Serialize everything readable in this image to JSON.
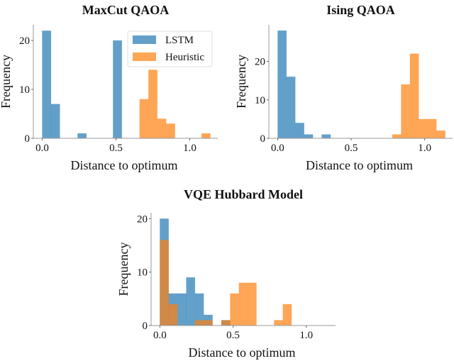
{
  "colors": {
    "lstm": "#1f77b4",
    "heuristic": "#ff7f0e",
    "opacity": 0.7
  },
  "legend": {
    "placement": "top-right of first panel",
    "entries": [
      "LSTM",
      "Heuristic"
    ]
  },
  "chart_data": [
    {
      "type": "bar",
      "title": "MaxCut QAOA",
      "xlabel": "Distance to optimum",
      "ylabel": "Frequency",
      "xlim": [
        -0.06,
        1.19
      ],
      "ylim": [
        0,
        23.2
      ],
      "xticks": [
        "0.0",
        "0.5",
        "1.0"
      ],
      "yticks": [
        "0",
        "10",
        "20"
      ],
      "bin_width": 0.06,
      "series": [
        {
          "name": "LSTM",
          "bins": [
            [
              0.0,
              22
            ],
            [
              0.06,
              7
            ],
            [
              0.24,
              1
            ],
            [
              0.48,
              20
            ]
          ]
        },
        {
          "name": "Heuristic",
          "bins": [
            [
              0.66,
              8
            ],
            [
              0.72,
              14
            ],
            [
              0.78,
              4
            ],
            [
              0.84,
              3
            ],
            [
              1.08,
              1
            ]
          ]
        }
      ]
    },
    {
      "type": "bar",
      "title": "Ising QAOA",
      "xlabel": "Distance to optimum",
      "ylabel": "Frequency",
      "xlim": [
        -0.06,
        1.19
      ],
      "ylim": [
        0,
        29.5
      ],
      "xticks": [
        "0.0",
        "0.5",
        "1.0"
      ],
      "yticks": [
        "0",
        "10",
        "20"
      ],
      "bin_width": 0.06,
      "series": [
        {
          "name": "LSTM",
          "bins": [
            [
              0.0,
              28
            ],
            [
              0.06,
              16
            ],
            [
              0.12,
              4
            ],
            [
              0.18,
              1
            ],
            [
              0.3,
              1
            ]
          ]
        },
        {
          "name": "Heuristic",
          "bins": [
            [
              0.78,
              1
            ],
            [
              0.84,
              14
            ],
            [
              0.9,
              22
            ],
            [
              0.96,
              5
            ],
            [
              1.02,
              5
            ],
            [
              1.08,
              2
            ]
          ]
        }
      ]
    },
    {
      "type": "bar",
      "title": "VQE Hubbard Model",
      "xlabel": "Distance to optimum",
      "ylabel": "Frequency",
      "xlim": [
        -0.06,
        1.2
      ],
      "ylim": [
        0,
        21.1
      ],
      "xticks": [
        "0.0",
        "0.5",
        "1.0"
      ],
      "yticks": [
        "0",
        "10",
        "20"
      ],
      "bin_width": 0.06,
      "series": [
        {
          "name": "LSTM",
          "bins": [
            [
              0.0,
              20
            ],
            [
              0.06,
              6
            ],
            [
              0.12,
              6
            ],
            [
              0.18,
              9
            ],
            [
              0.24,
              6
            ],
            [
              0.3,
              2
            ],
            [
              0.42,
              1
            ]
          ]
        },
        {
          "name": "Heuristic",
          "bins": [
            [
              0.0,
              16
            ],
            [
              0.06,
              4
            ],
            [
              0.24,
              1
            ],
            [
              0.3,
              1
            ],
            [
              0.42,
              1
            ],
            [
              0.48,
              6
            ],
            [
              0.54,
              8
            ],
            [
              0.6,
              8
            ],
            [
              0.78,
              1
            ],
            [
              0.84,
              4
            ]
          ]
        }
      ]
    }
  ]
}
